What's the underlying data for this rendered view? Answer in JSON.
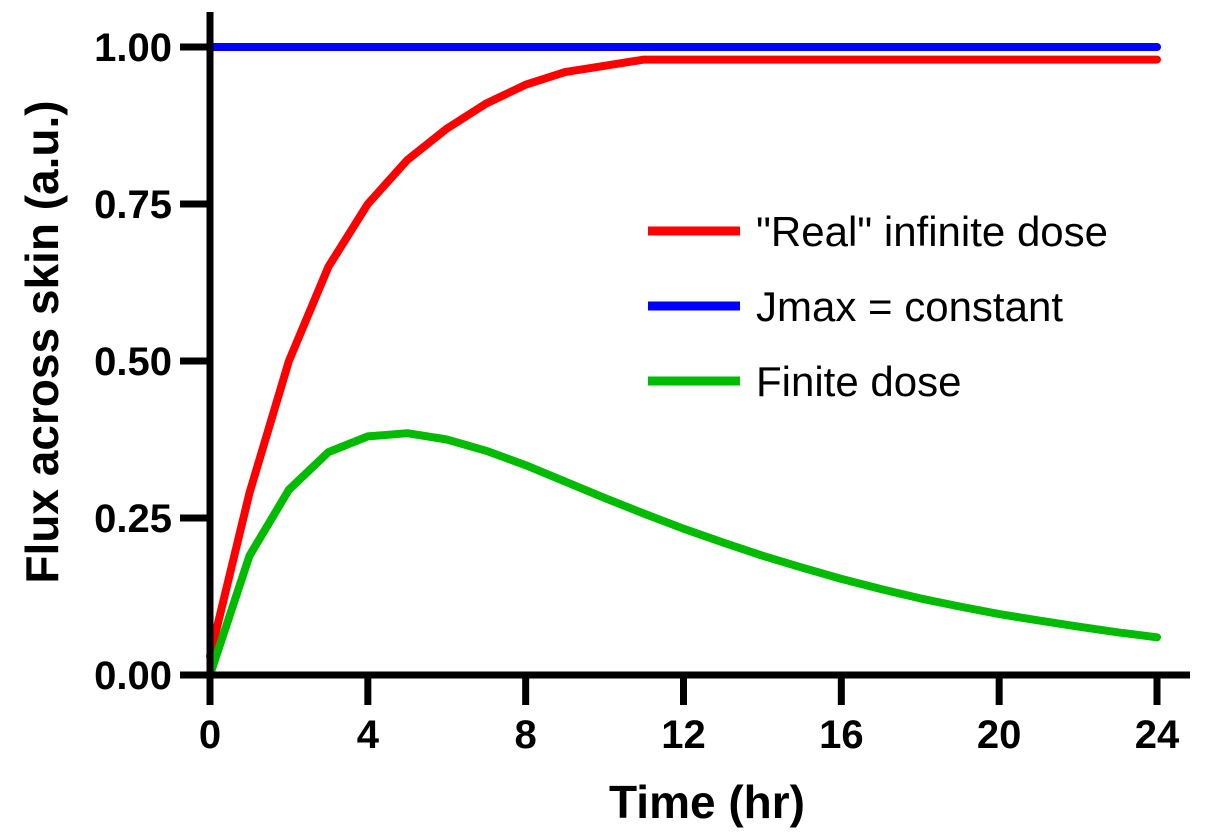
{
  "chart_data": {
    "type": "line",
    "xlabel": "Time (hr)",
    "ylabel": "Flux across skin (a.u.)",
    "xlim": [
      0,
      24
    ],
    "ylim": [
      0,
      1.0
    ],
    "x_ticks": [
      0,
      4,
      8,
      12,
      16,
      20,
      24
    ],
    "x_tick_labels": [
      "0",
      "4",
      "8",
      "12",
      "16",
      "20",
      "24"
    ],
    "y_ticks": [
      0,
      0.25,
      0.5,
      0.75,
      1.0
    ],
    "y_tick_labels": [
      "0.00",
      "0.25",
      "0.50",
      "0.75",
      "1.00"
    ],
    "grid": false,
    "legend_position": "right",
    "series": [
      {
        "name": "\"Real\" infinite dose",
        "color": "#ff0000",
        "x": [
          0,
          1,
          2,
          3,
          4,
          5,
          6,
          7,
          8,
          9,
          10,
          11,
          12,
          13,
          14,
          15,
          16,
          17,
          18,
          19,
          20,
          21,
          22,
          23,
          24
        ],
        "values": [
          0.03,
          0.29,
          0.5,
          0.65,
          0.75,
          0.82,
          0.87,
          0.91,
          0.94,
          0.96,
          0.97,
          0.98,
          0.98,
          0.98,
          0.98,
          0.98,
          0.98,
          0.98,
          0.98,
          0.98,
          0.98,
          0.98,
          0.98,
          0.98,
          0.98
        ]
      },
      {
        "name": "Jmax = constant",
        "color": "#0000ff",
        "x": [
          0,
          24
        ],
        "values": [
          1.0,
          1.0
        ]
      },
      {
        "name": "Finite dose",
        "color": "#00bb00",
        "x": [
          0,
          1,
          2,
          3,
          4,
          5,
          6,
          7,
          8,
          9,
          10,
          11,
          12,
          13,
          14,
          15,
          16,
          17,
          18,
          19,
          20,
          21,
          22,
          23,
          24
        ],
        "values": [
          0.0,
          0.19,
          0.295,
          0.355,
          0.38,
          0.385,
          0.375,
          0.357,
          0.334,
          0.308,
          0.282,
          0.257,
          0.233,
          0.211,
          0.19,
          0.171,
          0.153,
          0.137,
          0.122,
          0.109,
          0.097,
          0.087,
          0.077,
          0.068,
          0.06
        ]
      }
    ]
  }
}
